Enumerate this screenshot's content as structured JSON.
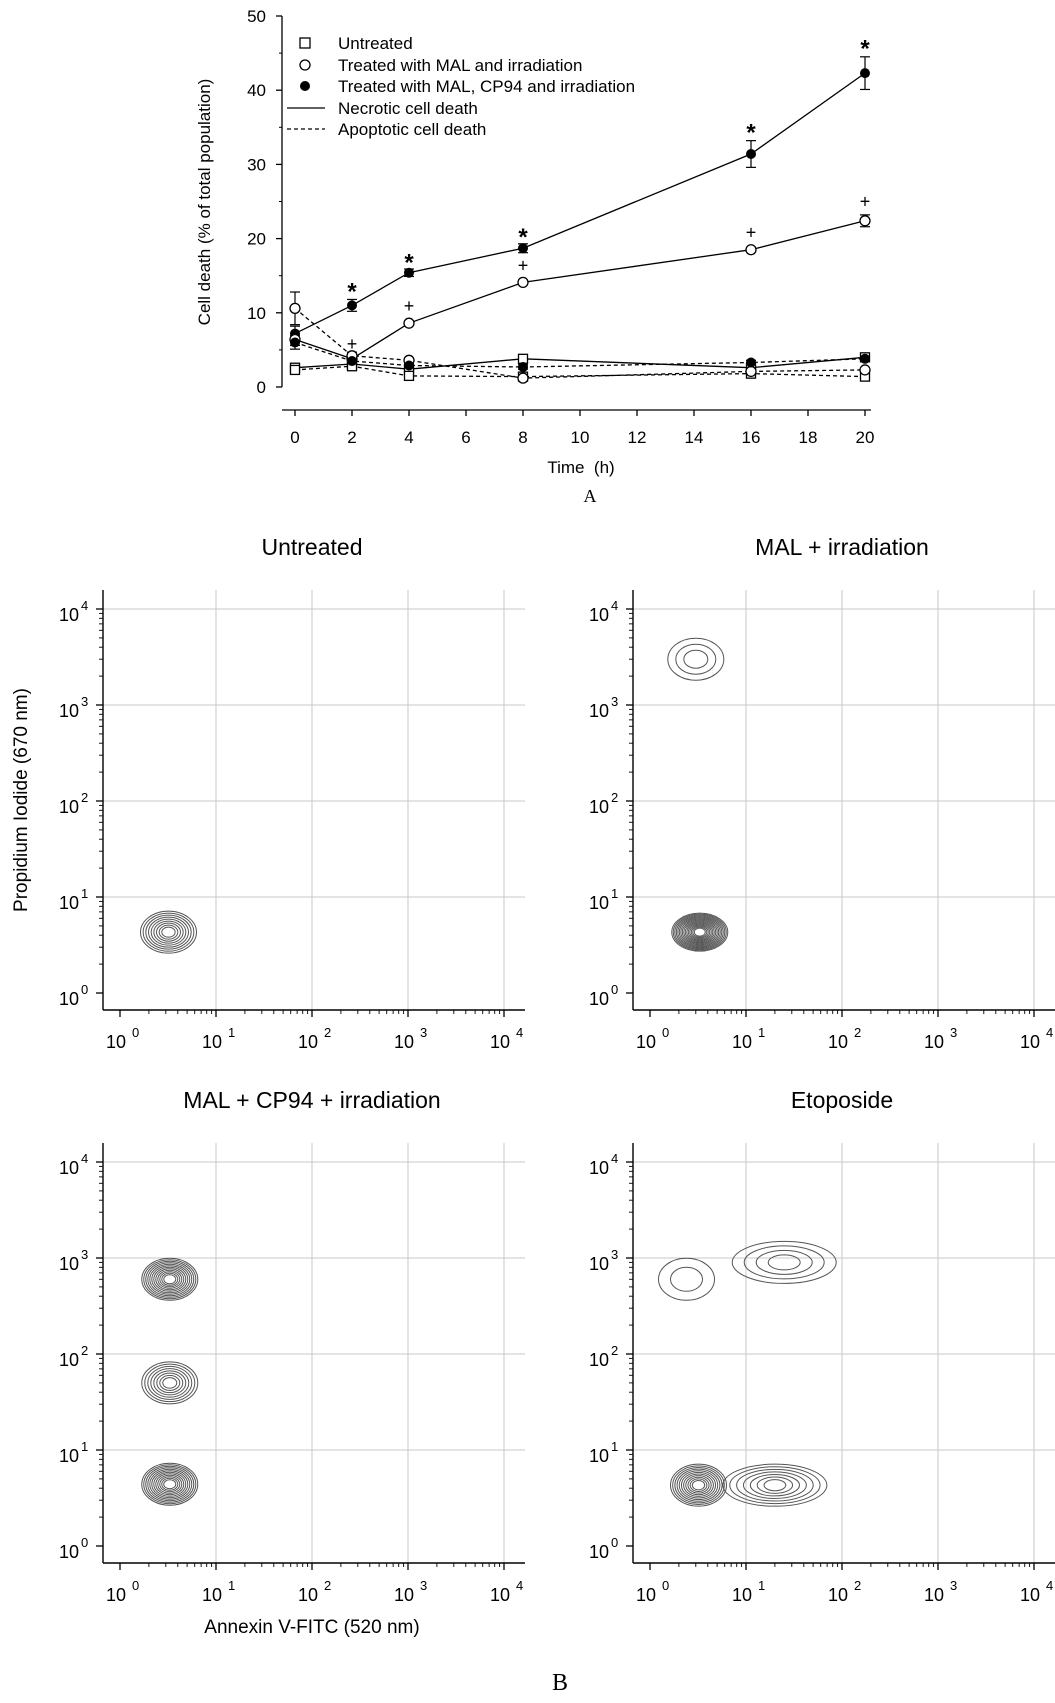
{
  "chart_data": [
    {
      "panel_label": "A",
      "type": "line",
      "xlabel": "Time  (h)",
      "ylabel": "Cell death (% of total population)",
      "xlim": [
        0,
        20
      ],
      "ylim": [
        0,
        50
      ],
      "xticks": [
        0,
        2,
        4,
        6,
        8,
        10,
        12,
        14,
        16,
        18,
        20
      ],
      "yticks": [
        0,
        10,
        20,
        30,
        40,
        50
      ],
      "x": [
        0,
        2,
        4,
        8,
        16,
        20
      ],
      "legend_position": "top-left",
      "legend": [
        {
          "marker": "open-square",
          "label": "Untreated"
        },
        {
          "marker": "open-circle",
          "label": "Treated with MAL and irradiation"
        },
        {
          "marker": "filled-circle",
          "label": "Treated with MAL, CP94 and irradiation"
        },
        {
          "line": "solid",
          "label": "Necrotic cell death"
        },
        {
          "line": "dashed",
          "label": "Apoptotic cell death"
        }
      ],
      "series": [
        {
          "treatment": "Treated with MAL, CP94 and irradiation",
          "death": "Necrotic cell death",
          "marker": "filled-circle",
          "line": "solid",
          "values": [
            7.2,
            11.0,
            15.4,
            18.7,
            31.4,
            42.3
          ],
          "errors": [
            1.0,
            0.8,
            0.5,
            0.6,
            1.8,
            2.2
          ]
        },
        {
          "treatment": "Treated with MAL and irradiation",
          "death": "Necrotic cell death",
          "marker": "open-circle",
          "line": "solid",
          "values": [
            6.4,
            3.8,
            8.6,
            14.1,
            18.5,
            22.4
          ],
          "errors": [
            0.8,
            0.4,
            0.3,
            0.3,
            0.3,
            0.8
          ]
        },
        {
          "treatment": "Untreated",
          "death": "Necrotic cell death",
          "marker": "open-square",
          "line": "solid",
          "values": [
            2.6,
            3.1,
            2.4,
            3.8,
            2.6,
            4.0
          ],
          "errors": [
            0.3,
            0.3,
            0.3,
            0.3,
            0.3,
            0.3
          ]
        },
        {
          "treatment": "Untreated",
          "death": "Apoptotic cell death",
          "marker": "open-square",
          "line": "dashed",
          "values": [
            2.3,
            2.8,
            1.5,
            1.4,
            1.8,
            1.4
          ],
          "errors": [
            0.3,
            0.3,
            0.3,
            0.3,
            0.3,
            0.3
          ]
        },
        {
          "treatment": "Treated with MAL and irradiation",
          "death": "Apoptotic cell death",
          "marker": "open-circle",
          "line": "dashed",
          "values": [
            10.6,
            4.2,
            3.6,
            1.2,
            2.1,
            2.3
          ],
          "errors": [
            2.2,
            0.5,
            0.3,
            0.3,
            0.3,
            0.3
          ]
        },
        {
          "treatment": "Treated with MAL, CP94 and irradiation",
          "death": "Apoptotic cell death",
          "marker": "filled-circle",
          "line": "dashed",
          "values": [
            6.0,
            3.5,
            2.9,
            2.7,
            3.3,
            3.8
          ],
          "errors": [
            0.9,
            0.4,
            0.3,
            0.3,
            0.3,
            0.3
          ]
        }
      ],
      "annotations": [
        {
          "symbol": "*",
          "x": 2,
          "y": 13.3
        },
        {
          "symbol": "*",
          "x": 4,
          "y": 17.2
        },
        {
          "symbol": "*",
          "x": 8,
          "y": 20.6
        },
        {
          "symbol": "*",
          "x": 16,
          "y": 34.7
        },
        {
          "symbol": "*",
          "x": 20,
          "y": 46.0
        },
        {
          "symbol": "+",
          "x": 2,
          "y": 5.8
        },
        {
          "symbol": "+",
          "x": 4,
          "y": 10.9
        },
        {
          "symbol": "+",
          "x": 8,
          "y": 16.4
        },
        {
          "symbol": "+",
          "x": 16,
          "y": 20.8
        },
        {
          "symbol": "+",
          "x": 20,
          "y": 25.0
        }
      ]
    },
    {
      "panel_label": "B",
      "type": "contour",
      "xlabel": "Annexin V-FITC (520 nm)",
      "ylabel": "Propidium Iodide (670 nm)",
      "x_scale": "log",
      "y_scale": "log",
      "tick_labels": [
        {
          "base": "10",
          "exp": "0"
        },
        {
          "base": "10",
          "exp": "1"
        },
        {
          "base": "10",
          "exp": "2"
        },
        {
          "base": "10",
          "exp": "3"
        },
        {
          "base": "10",
          "exp": "4"
        }
      ],
      "grid": true,
      "panels": [
        {
          "title": "Untreated",
          "x_axis_label": "",
          "y_axis_label": "Propidium Iodide (670 nm)",
          "populations": [
            {
              "x": 3.2,
              "y": 4.3,
              "levels": 9
            }
          ]
        },
        {
          "title": "MAL + irradiation",
          "x_axis_label": "",
          "y_axis_label": "",
          "populations": [
            {
              "x": 3.3,
              "y": 4.3,
              "levels": 16
            },
            {
              "x": 3.0,
              "y": 3000,
              "levels": 3
            }
          ]
        },
        {
          "title": "MAL + CP94 + irradiation",
          "x_axis_label": "Annexin V-FITC (520 nm)",
          "y_axis_label": "",
          "populations": [
            {
              "x": 3.3,
              "y": 4.4,
              "levels": 12
            },
            {
              "x": 3.3,
              "y": 50,
              "levels": 8
            },
            {
              "x": 3.3,
              "y": 600,
              "levels": 12
            }
          ]
        },
        {
          "title": "Etoposide",
          "x_axis_label": "",
          "y_axis_label": "",
          "populations": [
            {
              "x": 3.2,
              "y": 4.3,
              "levels": 11
            },
            {
              "x": 20,
              "y": 4.3,
              "levels": 7
            },
            {
              "x": 25,
              "y": 900,
              "levels": 4
            },
            {
              "x": 2.4,
              "y": 600,
              "levels": 2
            }
          ]
        }
      ]
    }
  ]
}
